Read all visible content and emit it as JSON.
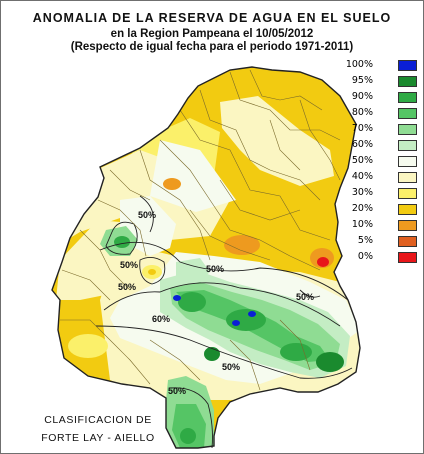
{
  "title": {
    "line1": "ANOMALIA DE LA RESERVA DE AGUA EN EL SUELO",
    "line2": "en la Region Pampeana el  10/05/2012",
    "line3": "(Respecto de igual fecha para el periodo 1971-2011)"
  },
  "legend": [
    {
      "label": "100%",
      "color": "#0a1fd6"
    },
    {
      "label": "95%",
      "color": "#1a8a2e"
    },
    {
      "label": "90%",
      "color": "#2faa45"
    },
    {
      "label": "80%",
      "color": "#55c565"
    },
    {
      "label": "70%",
      "color": "#8fdc93"
    },
    {
      "label": "60%",
      "color": "#c4edc4"
    },
    {
      "label": "50%",
      "color": "#f6fbef"
    },
    {
      "label": "40%",
      "color": "#fbf6c2"
    },
    {
      "label": "30%",
      "color": "#fbf06a"
    },
    {
      "label": "20%",
      "color": "#f2cb11"
    },
    {
      "label": "10%",
      "color": "#ee9a1f"
    },
    {
      "label": "5%",
      "color": "#e06020"
    },
    {
      "label": "0%",
      "color": "#e8161a"
    }
  ],
  "contour_labels": [
    "50%",
    "60%",
    "50%",
    "50%",
    "50%",
    "50%",
    "50%",
    "50%"
  ],
  "credit": {
    "line1": "CLASIFICACION DE",
    "line2": "FORTE LAY - AIELLO"
  }
}
